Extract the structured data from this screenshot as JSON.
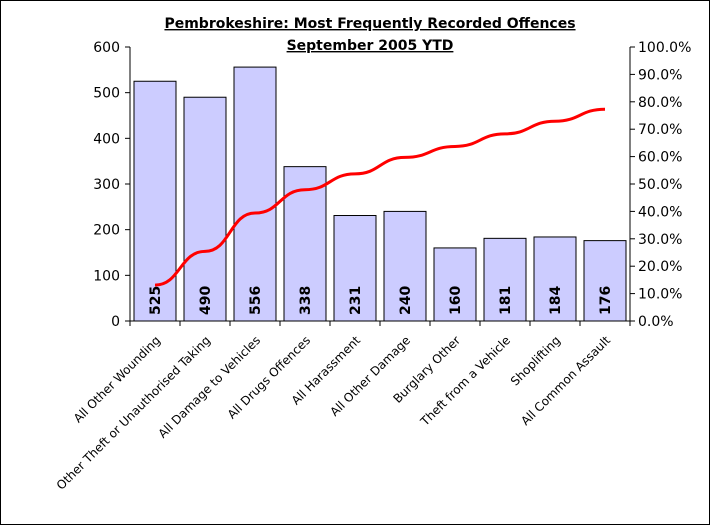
{
  "chart_data": {
    "type": "bar",
    "title": "Pembrokeshire: Most Frequently Recorded Offences",
    "subtitle": "September 2005 YTD",
    "categories": [
      "All Other Wounding",
      "Other Theft or Unauthorised Taking",
      "All Damage to Vehicles",
      "All Drugs Offences",
      "All Harassment",
      "All Other Damage",
      "Burglary Other",
      "Theft from a Vehicle",
      "Shoplifting",
      "All Common Assault"
    ],
    "values": [
      525,
      490,
      556,
      338,
      231,
      240,
      160,
      181,
      184,
      176
    ],
    "data_labels": [
      "525",
      "490",
      "556",
      "338",
      "231",
      "240",
      "160",
      "181",
      "184",
      "176"
    ],
    "line_series": {
      "axis": "right",
      "values": [
        0.131,
        0.254,
        0.394,
        0.479,
        0.537,
        0.597,
        0.637,
        0.683,
        0.729,
        0.773
      ]
    },
    "ylim": [
      0,
      600
    ],
    "y_ticks": [
      "0",
      "100",
      "200",
      "300",
      "400",
      "500",
      "600"
    ],
    "y2lim": [
      0,
      1
    ],
    "y2_ticks": [
      "0.0%",
      "10.0%",
      "20.0%",
      "30.0%",
      "40.0%",
      "50.0%",
      "60.0%",
      "70.0%",
      "80.0%",
      "90.0%",
      "100.0%"
    ],
    "colors": {
      "bar_fill": "#CCCCFF",
      "bar_stroke": "#000000",
      "line": "#FF0000"
    },
    "grid": false,
    "legend": "none"
  }
}
